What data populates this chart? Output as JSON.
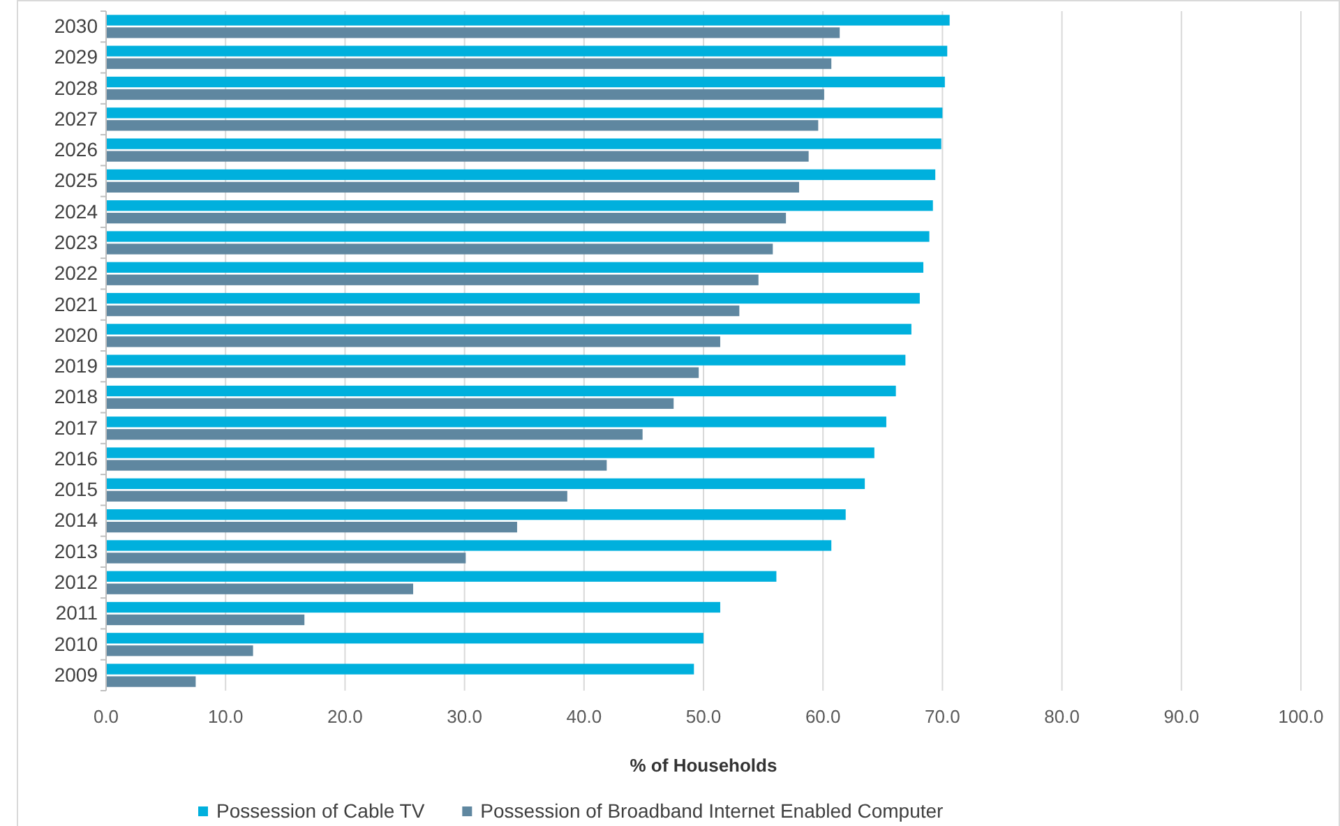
{
  "chart_data": {
    "type": "bar",
    "orientation": "horizontal",
    "xlabel": "% of Households",
    "categories": [
      "2030",
      "2029",
      "2028",
      "2027",
      "2026",
      "2025",
      "2024",
      "2023",
      "2022",
      "2021",
      "2020",
      "2019",
      "2018",
      "2017",
      "2016",
      "2015",
      "2014",
      "2013",
      "2012",
      "2011",
      "2010",
      "2009"
    ],
    "series": [
      {
        "name": "Possession of Cable TV",
        "color": "#00b0dd",
        "values": [
          70.6,
          70.4,
          70.2,
          70.0,
          69.9,
          69.4,
          69.2,
          68.9,
          68.4,
          68.1,
          67.4,
          66.9,
          66.1,
          65.3,
          64.3,
          63.5,
          61.9,
          60.7,
          56.1,
          51.4,
          50.0,
          49.2
        ]
      },
      {
        "name": "Possession of Broadband Internet Enabled Computer",
        "color": "#5f87a0",
        "values": [
          61.4,
          60.7,
          60.1,
          59.6,
          58.8,
          58.0,
          56.9,
          55.8,
          54.6,
          53.0,
          51.4,
          49.6,
          47.5,
          44.9,
          41.9,
          38.6,
          34.4,
          30.1,
          25.7,
          16.6,
          12.3,
          7.5
        ]
      }
    ],
    "xlim": [
      0,
      100
    ],
    "xticks": [
      {
        "value": 0,
        "label": "0.0"
      },
      {
        "value": 10,
        "label": "10.0"
      },
      {
        "value": 20,
        "label": "20.0"
      },
      {
        "value": 30,
        "label": "30.0"
      },
      {
        "value": 40,
        "label": "40.0"
      },
      {
        "value": 50,
        "label": "50.0"
      },
      {
        "value": 60,
        "label": "60.0"
      },
      {
        "value": 70,
        "label": "70.0"
      },
      {
        "value": 80,
        "label": "80.0"
      },
      {
        "value": 90,
        "label": "90.0"
      },
      {
        "value": 100,
        "label": "100.0"
      }
    ],
    "grid": "x",
    "legend": "bottom"
  }
}
